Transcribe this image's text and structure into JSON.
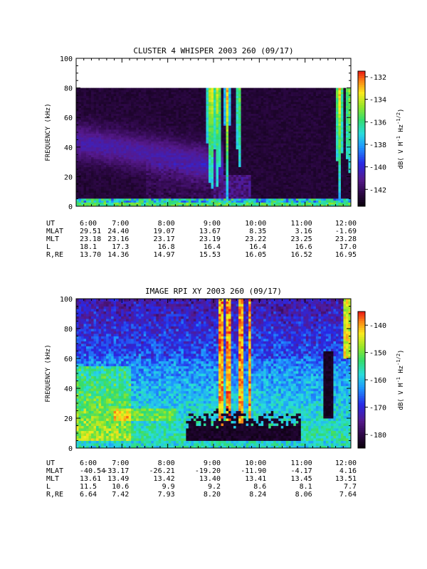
{
  "chart_data": [
    {
      "type": "heatmap",
      "title": "CLUSTER 4 WHISPER 2003 260 (09/17)",
      "ylabel": "FREQUENCY (kHz)",
      "ylim": [
        0,
        100
      ],
      "y_ticks": [
        "0",
        "20",
        "40",
        "60",
        "80",
        "100"
      ],
      "data_ymax": 80,
      "x_ticks": [
        "6:00",
        "7:00",
        "8:00",
        "9:00",
        "10:00",
        "11:00",
        "12:00"
      ],
      "colorbar": {
        "label": "dB( V M",
        "label_sup1": "-1",
        "label_mid": " Hz",
        "label_sup2": "-1/2",
        "label_end": ")",
        "range": [
          -143.5,
          -131.5
        ],
        "ticks": [
          "-132",
          "-134",
          "-136",
          "-138",
          "-140",
          "-142"
        ]
      },
      "ephemeris": [
        {
          "label": "UT",
          "values": [
            "6:00",
            "7:00",
            "8:00",
            "9:00",
            "10:00",
            "11:00",
            "12:00"
          ]
        },
        {
          "label": "MLAT",
          "values": [
            "29.51",
            "24.40",
            "19.07",
            "13.67",
            "8.35",
            "3.16",
            "-1.69"
          ]
        },
        {
          "label": "MLT",
          "values": [
            "23.18",
            "23.16",
            "23.17",
            "23.19",
            "23.22",
            "23.25",
            "23.28"
          ]
        },
        {
          "label": "L",
          "values": [
            "18.1",
            "17.3",
            "16.8",
            "16.4",
            "16.4",
            "16.6",
            "17.0"
          ]
        },
        {
          "label": "R,RE",
          "values": [
            "13.70",
            "14.36",
            "14.97",
            "15.53",
            "16.05",
            "16.52",
            "16.95"
          ]
        }
      ]
    },
    {
      "type": "heatmap",
      "title": "IMAGE RPI XY 2003 260 (09/17)",
      "ylabel": "FREQUENCY (kHz)",
      "ylim": [
        0,
        100
      ],
      "y_ticks": [
        "0",
        "20",
        "40",
        "60",
        "80",
        "100"
      ],
      "data_ymax": 100,
      "x_ticks": [
        "6:00",
        "7:00",
        "8:00",
        "9:00",
        "10:00",
        "11:00",
        "12:00"
      ],
      "colorbar": {
        "label": "dB( V M",
        "label_sup1": "-1",
        "label_mid": " Hz",
        "label_sup2": "-1/2",
        "label_end": ")",
        "range": [
          -185,
          -135
        ],
        "ticks": [
          "-140",
          "-150",
          "-160",
          "-170",
          "-180"
        ]
      },
      "ephemeris": [
        {
          "label": "UT",
          "values": [
            "6:00",
            "7:00",
            "8:00",
            "9:00",
            "10:00",
            "11:00",
            "12:00"
          ]
        },
        {
          "label": "MLAT",
          "values": [
            "-40.54",
            "-33.17",
            "-26.21",
            "-19.20",
            "-11.90",
            "-4.17",
            "4.16"
          ]
        },
        {
          "label": "MLT",
          "values": [
            "13.61",
            "13.49",
            "13.42",
            "13.40",
            "13.41",
            "13.45",
            "13.51"
          ]
        },
        {
          "label": "L",
          "values": [
            "11.5",
            "10.6",
            "9.9",
            "9.2",
            "8.6",
            "8.1",
            "7.7"
          ]
        },
        {
          "label": "R,RE",
          "values": [
            "6.64",
            "7.42",
            "7.93",
            "8.20",
            "8.24",
            "8.06",
            "7.64"
          ]
        }
      ]
    }
  ]
}
